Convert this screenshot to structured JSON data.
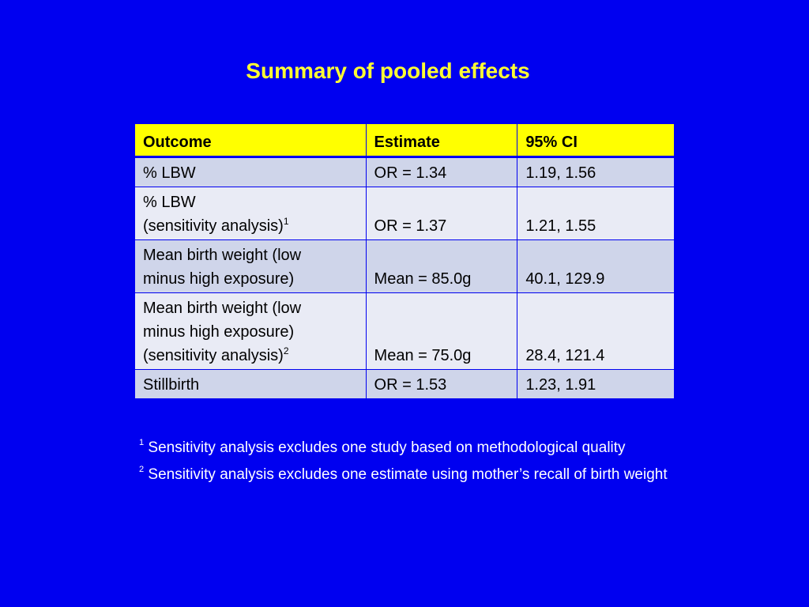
{
  "title": "Summary of pooled effects",
  "table": {
    "headers": [
      "Outcome",
      "Estimate",
      "95% CI"
    ],
    "rows": [
      {
        "outcome": [
          "% LBW"
        ],
        "outcome_sup": "",
        "estimate": "OR = 1.34",
        "ci": "1.19, 1.56"
      },
      {
        "outcome": [
          "% LBW",
          "(sensitivity analysis)"
        ],
        "outcome_sup": "1",
        "estimate": "OR = 1.37",
        "ci": "1.21, 1.55"
      },
      {
        "outcome": [
          "Mean birth weight (low",
          "minus high exposure)"
        ],
        "outcome_sup": "",
        "estimate": "Mean = 85.0g",
        "ci": "40.1, 129.9"
      },
      {
        "outcome": [
          "Mean birth weight (low",
          "minus high exposure)",
          "(sensitivity analysis)"
        ],
        "outcome_sup": "2",
        "estimate": "Mean = 75.0g",
        "ci": "28.4, 121.4"
      },
      {
        "outcome": [
          "Stillbirth"
        ],
        "outcome_sup": "",
        "estimate": "OR = 1.53",
        "ci": "1.23, 1.91"
      }
    ]
  },
  "footnotes": [
    {
      "marker": "1",
      "text": "Sensitivity analysis excludes one study based on methodological quality"
    },
    {
      "marker": "2",
      "text": "Sensitivity analysis excludes one estimate using mother’s recall of birth weight"
    }
  ],
  "colors": {
    "background": "#0000f0",
    "title": "#ffff33",
    "header_fill": "#ffff00",
    "row_dark": "#cfd5ea",
    "row_light": "#e9ebf5",
    "footnote_text": "#ffffff"
  }
}
